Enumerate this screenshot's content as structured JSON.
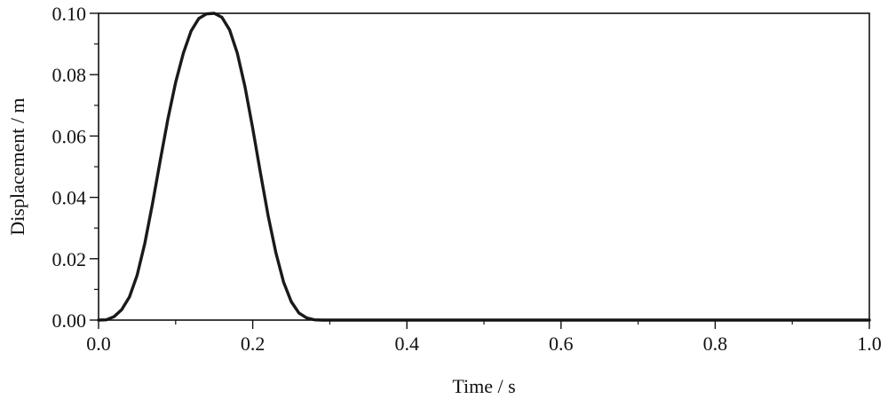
{
  "chart_data": {
    "type": "line",
    "title": "",
    "xlabel": "Time / s",
    "ylabel": "Displacement / m",
    "xlim": [
      0.0,
      1.0
    ],
    "ylim": [
      0.0,
      0.1
    ],
    "x_ticks": [
      0.0,
      0.2,
      0.4,
      0.6,
      0.8,
      1.0
    ],
    "x_tick_labels": [
      "0.0",
      "0.2",
      "0.4",
      "0.6",
      "0.8",
      "1.0"
    ],
    "y_ticks": [
      0.0,
      0.02,
      0.04,
      0.06,
      0.08,
      0.1
    ],
    "y_tick_labels": [
      "0.00",
      "0.02",
      "0.04",
      "0.06",
      "0.08",
      "0.10"
    ],
    "grid": false,
    "legend": "none",
    "series": [
      {
        "color": "#1a1a1a",
        "x": [
          0.0,
          0.01,
          0.02,
          0.03,
          0.04,
          0.05,
          0.06,
          0.07,
          0.08,
          0.09,
          0.1,
          0.11,
          0.12,
          0.13,
          0.14,
          0.15,
          0.16,
          0.17,
          0.18,
          0.19,
          0.2,
          0.21,
          0.22,
          0.23,
          0.24,
          0.25,
          0.26,
          0.27,
          0.28,
          0.29,
          0.3,
          0.4,
          0.5,
          0.6,
          0.7,
          0.8,
          0.9,
          1.0
        ],
        "y": [
          0.0,
          0.0001,
          0.0011,
          0.0034,
          0.0075,
          0.0146,
          0.025,
          0.038,
          0.052,
          0.0656,
          0.0775,
          0.087,
          0.0942,
          0.0983,
          0.0998,
          0.1,
          0.0987,
          0.0946,
          0.087,
          0.076,
          0.0625,
          0.048,
          0.034,
          0.022,
          0.0124,
          0.006,
          0.0023,
          0.0007,
          0.0001,
          0.0,
          0.0,
          0.0,
          0.0,
          0.0,
          0.0,
          0.0,
          0.0,
          0.0
        ]
      }
    ]
  }
}
